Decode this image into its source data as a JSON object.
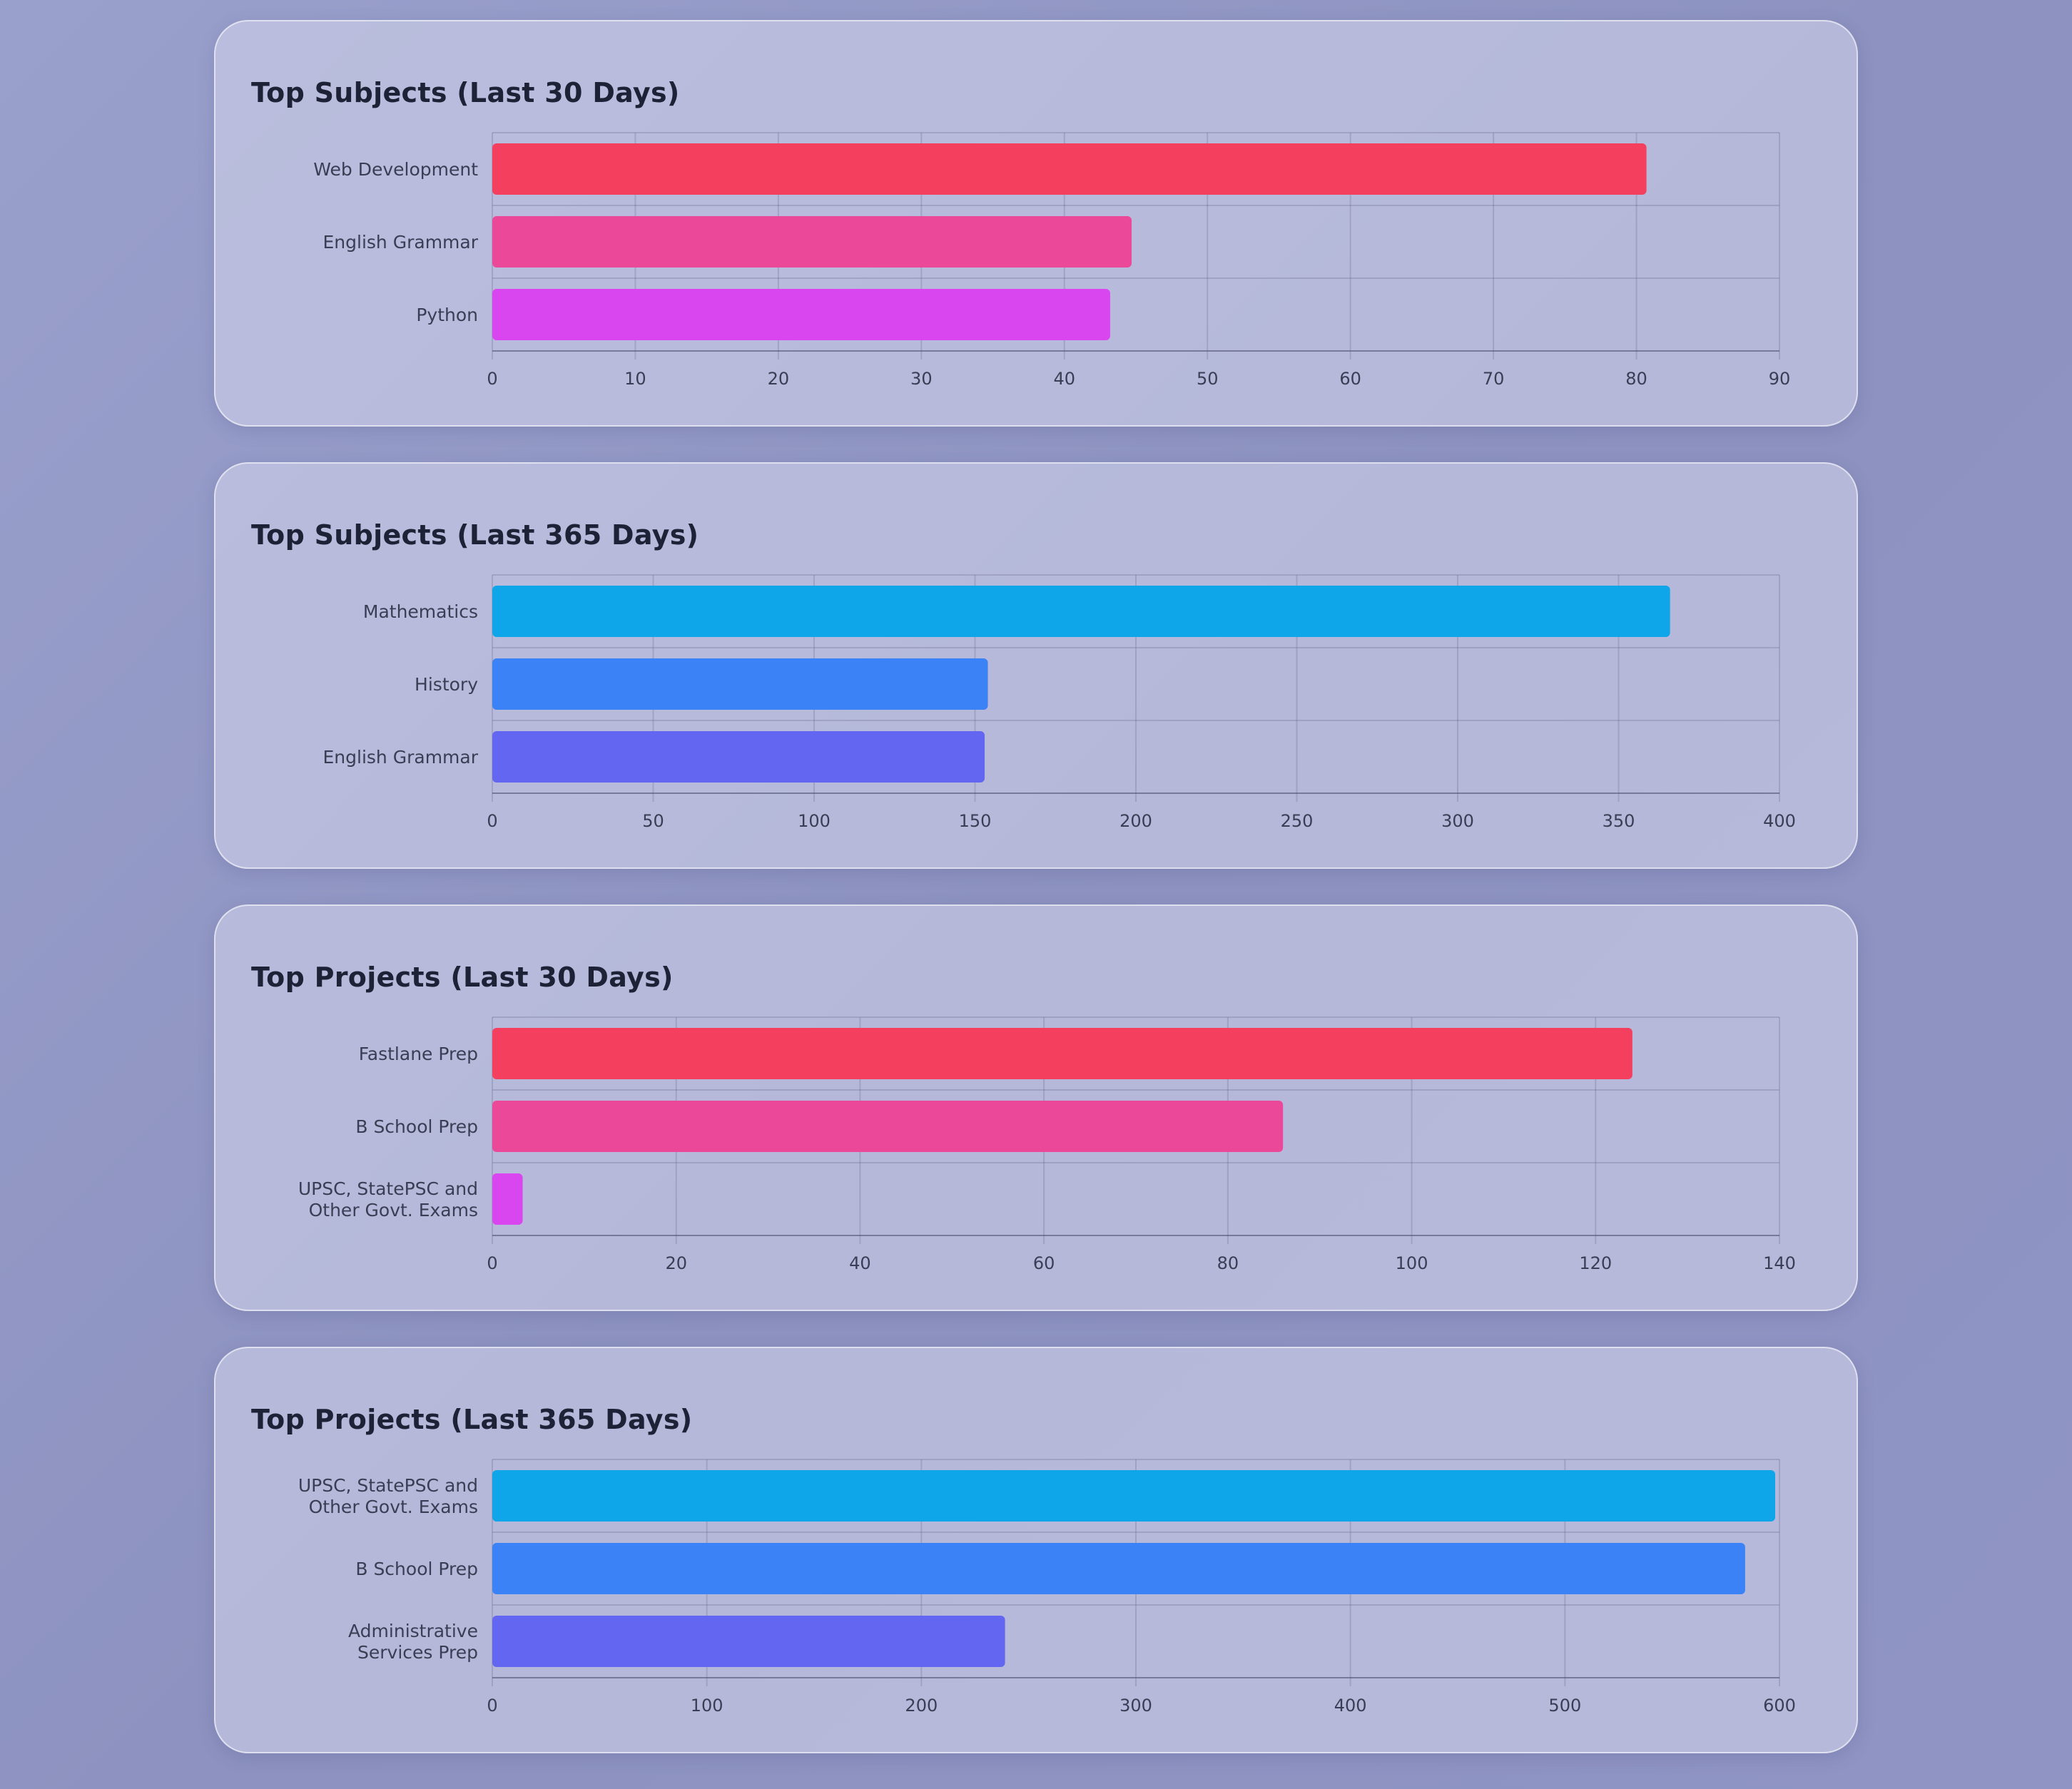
{
  "chart_data": [
    {
      "type": "bar",
      "orientation": "horizontal",
      "title": "Top Subjects (Last 30 Days)",
      "categories": [
        [
          "Web Development"
        ],
        [
          "English Grammar"
        ],
        [
          "Python"
        ]
      ],
      "values": [
        80.7,
        44.7,
        43.2
      ],
      "colors": [
        "#f43f5e",
        "#ec4899",
        "#d946ef"
      ],
      "xticks": [
        "0",
        "10",
        "20",
        "30",
        "40",
        "50",
        "60",
        "70",
        "80",
        "90"
      ],
      "xlim": [
        0,
        90
      ],
      "grid": true
    },
    {
      "type": "bar",
      "orientation": "horizontal",
      "title": "Top Subjects (Last 365 Days)",
      "categories": [
        [
          "Mathematics"
        ],
        [
          "History"
        ],
        [
          "English Grammar"
        ]
      ],
      "values": [
        366,
        154,
        153
      ],
      "colors": [
        "#0ea5e9",
        "#3b82f6",
        "#6366f1"
      ],
      "xticks": [
        "0",
        "50",
        "100",
        "150",
        "200",
        "250",
        "300",
        "350",
        "400"
      ],
      "xlim": [
        0,
        400
      ],
      "grid": true
    },
    {
      "type": "bar",
      "orientation": "horizontal",
      "title": "Top Projects (Last 30 Days)",
      "categories": [
        [
          "Fastlane Prep"
        ],
        [
          "B School Prep"
        ],
        [
          "UPSC, StatePSC and",
          "Other Govt. Exams"
        ]
      ],
      "values": [
        124,
        86,
        3.3
      ],
      "colors": [
        "#f43f5e",
        "#ec4899",
        "#d946ef"
      ],
      "xticks": [
        "0",
        "20",
        "40",
        "60",
        "80",
        "100",
        "120",
        "140"
      ],
      "xlim": [
        0,
        140
      ],
      "grid": true
    },
    {
      "type": "bar",
      "orientation": "horizontal",
      "title": "Top Projects (Last 365 Days)",
      "categories": [
        [
          "UPSC, StatePSC and",
          "Other Govt. Exams"
        ],
        [
          "B School Prep"
        ],
        [
          "Administrative",
          "Services Prep"
        ]
      ],
      "values": [
        598,
        584,
        239
      ],
      "colors": [
        "#0ea5e9",
        "#3b82f6",
        "#6366f1"
      ],
      "xticks": [
        "0",
        "100",
        "200",
        "300",
        "400",
        "500",
        "600"
      ],
      "xlim": [
        0,
        600
      ],
      "grid": true
    }
  ]
}
